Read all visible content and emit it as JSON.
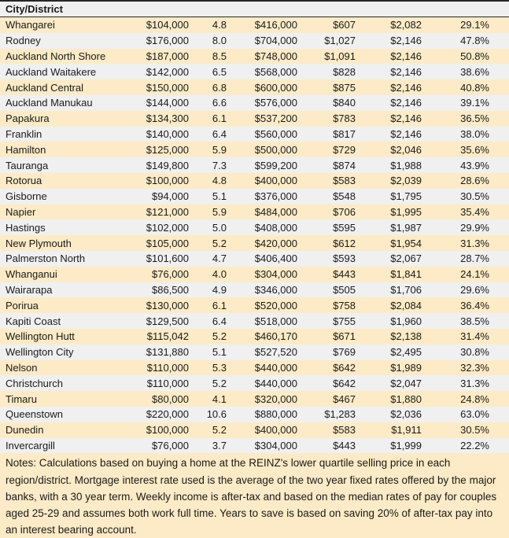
{
  "table": {
    "header_label": "City/District",
    "rows": [
      [
        "Whangarei",
        "$104,000",
        "4.8",
        "$416,000",
        "$607",
        "$2,082",
        "29.1%"
      ],
      [
        "Rodney",
        "$176,000",
        "8.0",
        "$704,000",
        "$1,027",
        "$2,146",
        "47.8%"
      ],
      [
        "Auckland North Shore",
        "$187,000",
        "8.5",
        "$748,000",
        "$1,091",
        "$2,146",
        "50.8%"
      ],
      [
        "Auckland Waitakere",
        "$142,000",
        "6.5",
        "$568,000",
        "$828",
        "$2,146",
        "38.6%"
      ],
      [
        "Auckland Central",
        "$150,000",
        "6.8",
        "$600,000",
        "$875",
        "$2,146",
        "40.8%"
      ],
      [
        "Auckland Manukau",
        "$144,000",
        "6.6",
        "$576,000",
        "$840",
        "$2,146",
        "39.1%"
      ],
      [
        "Papakura",
        "$134,300",
        "6.1",
        "$537,200",
        "$783",
        "$2,146",
        "36.5%"
      ],
      [
        "Franklin",
        "$140,000",
        "6.4",
        "$560,000",
        "$817",
        "$2,146",
        "38.0%"
      ],
      [
        "Hamilton",
        "$125,000",
        "5.9",
        "$500,000",
        "$729",
        "$2,046",
        "35.6%"
      ],
      [
        "Tauranga",
        "$149,800",
        "7.3",
        "$599,200",
        "$874",
        "$1,988",
        "43.9%"
      ],
      [
        "Rotorua",
        "$100,000",
        "4.8",
        "$400,000",
        "$583",
        "$2,039",
        "28.6%"
      ],
      [
        "Gisborne",
        "$94,000",
        "5.1",
        "$376,000",
        "$548",
        "$1,795",
        "30.5%"
      ],
      [
        "Napier",
        "$121,000",
        "5.9",
        "$484,000",
        "$706",
        "$1,995",
        "35.4%"
      ],
      [
        "Hastings",
        "$102,000",
        "5.0",
        "$408,000",
        "$595",
        "$1,987",
        "29.9%"
      ],
      [
        "New Plymouth",
        "$105,000",
        "5.2",
        "$420,000",
        "$612",
        "$1,954",
        "31.3%"
      ],
      [
        "Palmerston North",
        "$101,600",
        "4.7",
        "$406,400",
        "$593",
        "$2,067",
        "28.7%"
      ],
      [
        "Whanganui",
        "$76,000",
        "4.0",
        "$304,000",
        "$443",
        "$1,841",
        "24.1%"
      ],
      [
        "Wairarapa",
        "$86,500",
        "4.9",
        "$346,000",
        "$505",
        "$1,706",
        "29.6%"
      ],
      [
        "Porirua",
        "$130,000",
        "6.1",
        "$520,000",
        "$758",
        "$2,084",
        "36.4%"
      ],
      [
        "Kapiti Coast",
        "$129,500",
        "6.4",
        "$518,000",
        "$755",
        "$1,960",
        "38.5%"
      ],
      [
        "Wellington Hutt",
        "$115,042",
        "5.2",
        "$460,170",
        "$671",
        "$2,138",
        "31.4%"
      ],
      [
        "Wellington City",
        "$131,880",
        "5.1",
        "$527,520",
        "$769",
        "$2,495",
        "30.8%"
      ],
      [
        "Nelson",
        "$110,000",
        "5.3",
        "$440,000",
        "$642",
        "$1,989",
        "32.3%"
      ],
      [
        "Christchurch",
        "$110,000",
        "5.2",
        "$440,000",
        "$642",
        "$2,047",
        "31.3%"
      ],
      [
        "Timaru",
        "$80,000",
        "4.1",
        "$320,000",
        "$467",
        "$1,880",
        "24.8%"
      ],
      [
        "Queenstown",
        "$220,000",
        "10.6",
        "$880,000",
        "$1,283",
        "$2,036",
        "63.0%"
      ],
      [
        "Dunedin",
        "$100,000",
        "5.2",
        "$400,000",
        "$583",
        "$1,911",
        "30.5%"
      ],
      [
        "Invercargill",
        "$76,000",
        "3.7",
        "$304,000",
        "$443",
        "$1,999",
        "22.2%"
      ]
    ]
  },
  "notes": "Notes: Calculations based on buying a home at the REINZ's lower quartile selling price in each region/district. Mortgage interest rate used is the average of the two year fixed rates offered by the major banks, with a 30 year term. Weekly income is after-tax and based on the median rates of pay for couples aged 25-29 and assumes both work full time. Years to save is based on saving 20% of after-tax pay into an interest bearing account.",
  "colors": {
    "row-stripe": "#fcebc6",
    "row-alt": "#f0f0f0",
    "border": "#262626",
    "text": "#1a1a1a"
  },
  "chart_data": {
    "type": "table",
    "title": "City/District home affordability table",
    "columns": [
      "City/District",
      "",
      "",
      "",
      "",
      "",
      ""
    ],
    "rows": [
      [
        "Whangarei",
        104000,
        4.8,
        416000,
        607,
        2082,
        29.1
      ],
      [
        "Rodney",
        176000,
        8.0,
        704000,
        1027,
        2146,
        47.8
      ],
      [
        "Auckland North Shore",
        187000,
        8.5,
        748000,
        1091,
        2146,
        50.8
      ],
      [
        "Auckland Waitakere",
        142000,
        6.5,
        568000,
        828,
        2146,
        38.6
      ],
      [
        "Auckland Central",
        150000,
        6.8,
        600000,
        875,
        2146,
        40.8
      ],
      [
        "Auckland Manukau",
        144000,
        6.6,
        576000,
        840,
        2146,
        39.1
      ],
      [
        "Papakura",
        134300,
        6.1,
        537200,
        783,
        2146,
        36.5
      ],
      [
        "Franklin",
        140000,
        6.4,
        560000,
        817,
        2146,
        38.0
      ],
      [
        "Hamilton",
        125000,
        5.9,
        500000,
        729,
        2046,
        35.6
      ],
      [
        "Tauranga",
        149800,
        7.3,
        599200,
        874,
        1988,
        43.9
      ],
      [
        "Rotorua",
        100000,
        4.8,
        400000,
        583,
        2039,
        28.6
      ],
      [
        "Gisborne",
        94000,
        5.1,
        376000,
        548,
        1795,
        30.5
      ],
      [
        "Napier",
        121000,
        5.9,
        484000,
        706,
        1995,
        35.4
      ],
      [
        "Hastings",
        102000,
        5.0,
        408000,
        595,
        1987,
        29.9
      ],
      [
        "New Plymouth",
        105000,
        5.2,
        420000,
        612,
        1954,
        31.3
      ],
      [
        "Palmerston North",
        101600,
        4.7,
        406400,
        593,
        2067,
        28.7
      ],
      [
        "Whanganui",
        76000,
        4.0,
        304000,
        443,
        1841,
        24.1
      ],
      [
        "Wairarapa",
        86500,
        4.9,
        346000,
        505,
        1706,
        29.6
      ],
      [
        "Porirua",
        130000,
        6.1,
        520000,
        758,
        2084,
        36.4
      ],
      [
        "Kapiti Coast",
        129500,
        6.4,
        518000,
        755,
        1960,
        38.5
      ],
      [
        "Wellington Hutt",
        115042,
        5.2,
        460170,
        671,
        2138,
        31.4
      ],
      [
        "Wellington City",
        131880,
        5.1,
        527520,
        769,
        2495,
        30.8
      ],
      [
        "Nelson",
        110000,
        5.3,
        440000,
        642,
        1989,
        32.3
      ],
      [
        "Christchurch",
        110000,
        5.2,
        440000,
        642,
        2047,
        31.3
      ],
      [
        "Timaru",
        80000,
        4.1,
        320000,
        467,
        1880,
        24.8
      ],
      [
        "Queenstown",
        220000,
        10.6,
        880000,
        1283,
        2036,
        63.0
      ],
      [
        "Dunedin",
        100000,
        5.2,
        400000,
        583,
        1911,
        30.5
      ],
      [
        "Invercargill",
        76000,
        3.7,
        304000,
        443,
        1999,
        22.2
      ]
    ]
  }
}
